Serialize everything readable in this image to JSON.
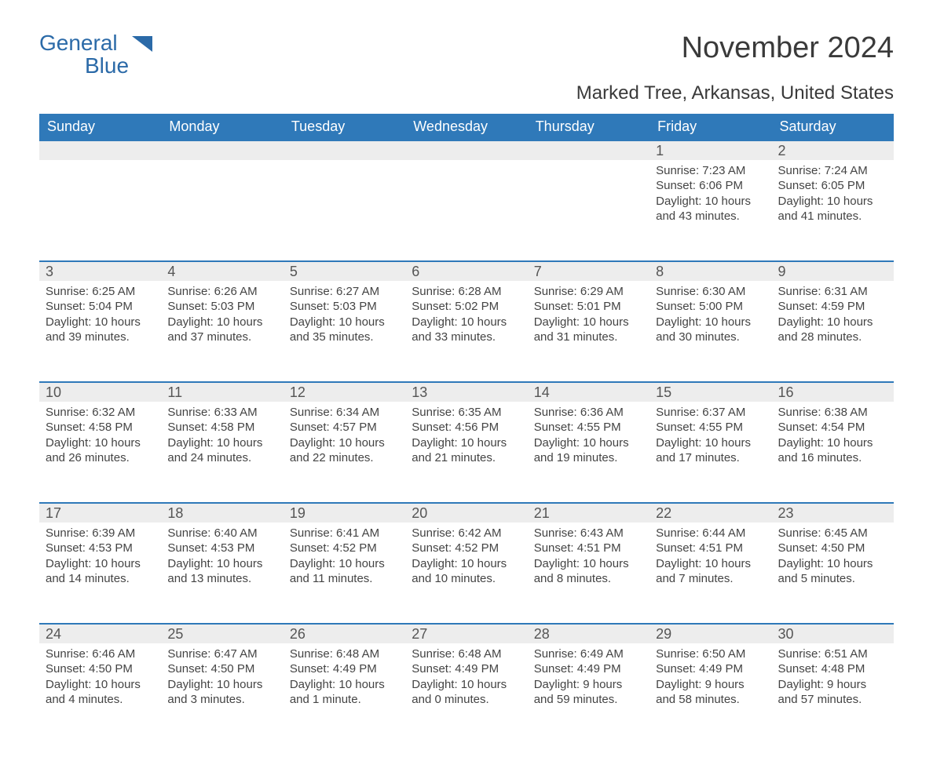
{
  "logo": {
    "line1": "General",
    "line2": "Blue",
    "color": "#2b6aa8"
  },
  "title": "November 2024",
  "subtitle": "Marked Tree, Arkansas, United States",
  "colors": {
    "header_bg": "#2f79b9",
    "header_text": "#ffffff",
    "daynum_bg": "#ededed",
    "daynum_border": "#2f79b9",
    "body_text": "#444444",
    "title_text": "#3a3a3a"
  },
  "fontsize": {
    "title": 38,
    "subtitle": 24,
    "th": 18,
    "daynum": 18,
    "cell": 15
  },
  "daysOfWeek": [
    "Sunday",
    "Monday",
    "Tuesday",
    "Wednesday",
    "Thursday",
    "Friday",
    "Saturday"
  ],
  "weeks": [
    [
      null,
      null,
      null,
      null,
      null,
      {
        "day": 1,
        "sunrise": "7:23 AM",
        "sunset": "6:06 PM",
        "daylight": "10 hours and 43 minutes."
      },
      {
        "day": 2,
        "sunrise": "7:24 AM",
        "sunset": "6:05 PM",
        "daylight": "10 hours and 41 minutes."
      }
    ],
    [
      {
        "day": 3,
        "sunrise": "6:25 AM",
        "sunset": "5:04 PM",
        "daylight": "10 hours and 39 minutes."
      },
      {
        "day": 4,
        "sunrise": "6:26 AM",
        "sunset": "5:03 PM",
        "daylight": "10 hours and 37 minutes."
      },
      {
        "day": 5,
        "sunrise": "6:27 AM",
        "sunset": "5:03 PM",
        "daylight": "10 hours and 35 minutes."
      },
      {
        "day": 6,
        "sunrise": "6:28 AM",
        "sunset": "5:02 PM",
        "daylight": "10 hours and 33 minutes."
      },
      {
        "day": 7,
        "sunrise": "6:29 AM",
        "sunset": "5:01 PM",
        "daylight": "10 hours and 31 minutes."
      },
      {
        "day": 8,
        "sunrise": "6:30 AM",
        "sunset": "5:00 PM",
        "daylight": "10 hours and 30 minutes."
      },
      {
        "day": 9,
        "sunrise": "6:31 AM",
        "sunset": "4:59 PM",
        "daylight": "10 hours and 28 minutes."
      }
    ],
    [
      {
        "day": 10,
        "sunrise": "6:32 AM",
        "sunset": "4:58 PM",
        "daylight": "10 hours and 26 minutes."
      },
      {
        "day": 11,
        "sunrise": "6:33 AM",
        "sunset": "4:58 PM",
        "daylight": "10 hours and 24 minutes."
      },
      {
        "day": 12,
        "sunrise": "6:34 AM",
        "sunset": "4:57 PM",
        "daylight": "10 hours and 22 minutes."
      },
      {
        "day": 13,
        "sunrise": "6:35 AM",
        "sunset": "4:56 PM",
        "daylight": "10 hours and 21 minutes."
      },
      {
        "day": 14,
        "sunrise": "6:36 AM",
        "sunset": "4:55 PM",
        "daylight": "10 hours and 19 minutes."
      },
      {
        "day": 15,
        "sunrise": "6:37 AM",
        "sunset": "4:55 PM",
        "daylight": "10 hours and 17 minutes."
      },
      {
        "day": 16,
        "sunrise": "6:38 AM",
        "sunset": "4:54 PM",
        "daylight": "10 hours and 16 minutes."
      }
    ],
    [
      {
        "day": 17,
        "sunrise": "6:39 AM",
        "sunset": "4:53 PM",
        "daylight": "10 hours and 14 minutes."
      },
      {
        "day": 18,
        "sunrise": "6:40 AM",
        "sunset": "4:53 PM",
        "daylight": "10 hours and 13 minutes."
      },
      {
        "day": 19,
        "sunrise": "6:41 AM",
        "sunset": "4:52 PM",
        "daylight": "10 hours and 11 minutes."
      },
      {
        "day": 20,
        "sunrise": "6:42 AM",
        "sunset": "4:52 PM",
        "daylight": "10 hours and 10 minutes."
      },
      {
        "day": 21,
        "sunrise": "6:43 AM",
        "sunset": "4:51 PM",
        "daylight": "10 hours and 8 minutes."
      },
      {
        "day": 22,
        "sunrise": "6:44 AM",
        "sunset": "4:51 PM",
        "daylight": "10 hours and 7 minutes."
      },
      {
        "day": 23,
        "sunrise": "6:45 AM",
        "sunset": "4:50 PM",
        "daylight": "10 hours and 5 minutes."
      }
    ],
    [
      {
        "day": 24,
        "sunrise": "6:46 AM",
        "sunset": "4:50 PM",
        "daylight": "10 hours and 4 minutes."
      },
      {
        "day": 25,
        "sunrise": "6:47 AM",
        "sunset": "4:50 PM",
        "daylight": "10 hours and 3 minutes."
      },
      {
        "day": 26,
        "sunrise": "6:48 AM",
        "sunset": "4:49 PM",
        "daylight": "10 hours and 1 minute."
      },
      {
        "day": 27,
        "sunrise": "6:48 AM",
        "sunset": "4:49 PM",
        "daylight": "10 hours and 0 minutes."
      },
      {
        "day": 28,
        "sunrise": "6:49 AM",
        "sunset": "4:49 PM",
        "daylight": "9 hours and 59 minutes."
      },
      {
        "day": 29,
        "sunrise": "6:50 AM",
        "sunset": "4:49 PM",
        "daylight": "9 hours and 58 minutes."
      },
      {
        "day": 30,
        "sunrise": "6:51 AM",
        "sunset": "4:48 PM",
        "daylight": "9 hours and 57 minutes."
      }
    ]
  ],
  "labels": {
    "sunrise": "Sunrise: ",
    "sunset": "Sunset: ",
    "daylight": "Daylight: "
  }
}
